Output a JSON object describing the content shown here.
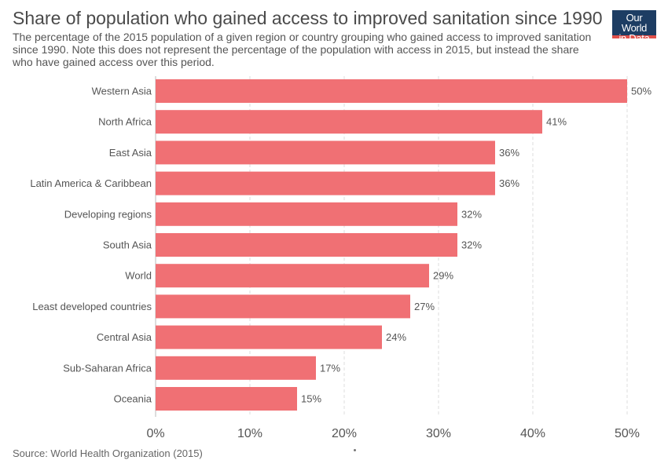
{
  "header": {
    "title": "Share of population who gained access to improved sanitation since 1990",
    "subtitle": "The percentage of the 2015 population of a given region or country grouping who gained access to improved sanitation since 1990. Note this does not represent the percentage of the population with access in 2015, but instead the share who have gained access over this period.",
    "logo_line1": "Our World",
    "logo_line2": "in Data"
  },
  "footer": {
    "source": "Source: World Health Organization (2015)"
  },
  "colors": {
    "bar": "#f07074",
    "grid": "#dddddd",
    "logo_bg": "#1d3d63",
    "logo_accent": "#e0504a"
  },
  "chart_data": {
    "type": "bar",
    "orientation": "horizontal",
    "categories": [
      "Western Asia",
      "North Africa",
      "East Asia",
      "Latin America & Caribbean",
      "Developing regions",
      "South Asia",
      "World",
      "Least developed countries",
      "Central Asia",
      "Sub-Saharan Africa",
      "Oceania"
    ],
    "values": [
      50,
      41,
      36,
      36,
      32,
      32,
      29,
      27,
      24,
      17,
      15
    ],
    "value_labels": [
      "50%",
      "41%",
      "36%",
      "36%",
      "32%",
      "32%",
      "29%",
      "27%",
      "24%",
      "17%",
      "15%"
    ],
    "xlim": [
      0,
      50
    ],
    "xticks": [
      0,
      10,
      20,
      30,
      40,
      50
    ],
    "xtick_labels": [
      "0%",
      "10%",
      "20%",
      "30%",
      "40%",
      "50%"
    ],
    "grid": true
  }
}
